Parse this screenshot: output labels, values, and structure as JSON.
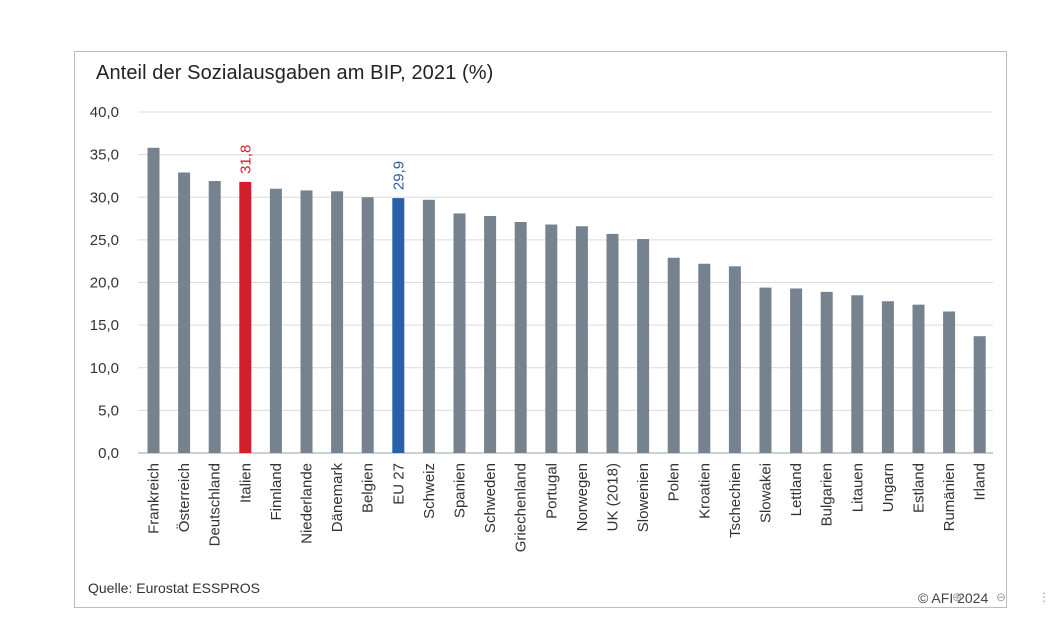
{
  "title": "Anteil der Sozialausgaben am BIP, 2021 (%)",
  "source": "Quelle: Eurostat ESSPROS",
  "copyright": "© AFI 2024",
  "chart_data": {
    "type": "bar",
    "categories": [
      "Frankreich",
      "Österreich",
      "Deutschland",
      "Italien",
      "Finnland",
      "Niederlande",
      "Dänemark",
      "Belgien",
      "EU 27",
      "Schweiz",
      "Spanien",
      "Schweden",
      "Griechenland",
      "Portugal",
      "Norwegen",
      "UK (2018)",
      "Slowenien",
      "Polen",
      "Kroatien",
      "Tschechien",
      "Slowakei",
      "Lettland",
      "Bulgarien",
      "Litauen",
      "Ungarn",
      "Estland",
      "Rumänien",
      "Irland"
    ],
    "values": [
      35.8,
      32.9,
      31.9,
      31.8,
      31.0,
      30.8,
      30.7,
      30.0,
      29.9,
      29.7,
      28.1,
      27.8,
      27.1,
      26.8,
      26.6,
      25.7,
      25.1,
      22.9,
      22.2,
      21.9,
      19.4,
      19.3,
      18.9,
      18.5,
      17.8,
      17.4,
      16.6,
      13.7
    ],
    "ylim": [
      0,
      40
    ],
    "yticks": [
      "0,0",
      "5,0",
      "10,0",
      "15,0",
      "20,0",
      "25,0",
      "30,0",
      "35,0",
      "40,0"
    ],
    "grid": true,
    "colors": {
      "default": "#76838f",
      "Italien": "#d21f2b",
      "EU 27": "#2c5faa"
    },
    "data_labels": [
      {
        "category": "Italien",
        "text": "31,8",
        "color": "#d21f2b"
      },
      {
        "category": "EU 27",
        "text": "29,9",
        "color": "#2c5faa"
      }
    ]
  }
}
